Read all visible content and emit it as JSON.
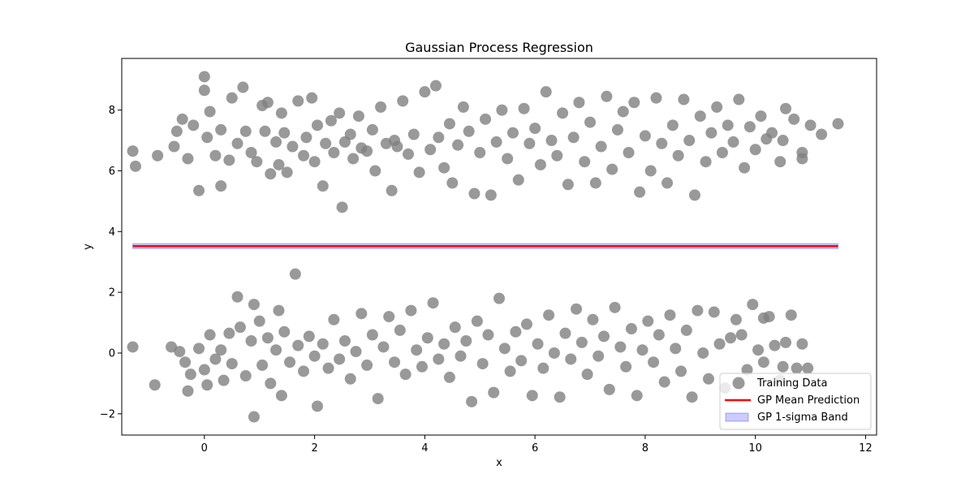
{
  "chart_data": {
    "type": "scatter",
    "title": "Gaussian Process Regression",
    "xlabel": "x",
    "ylabel": "y",
    "xlim": [
      -1.5,
      12.2
    ],
    "ylim": [
      -2.7,
      9.7
    ],
    "xticks": [
      0,
      2,
      4,
      6,
      8,
      10,
      12
    ],
    "yticks": [
      -2,
      0,
      2,
      4,
      6,
      8
    ],
    "grid": false,
    "legend_position": "lower-right",
    "series": [
      {
        "name": "Training Data",
        "kind": "scatter",
        "color": "#808080",
        "description": "Two horizontal clusters of noisy training points: one centred near y = 7 and one centred near y = 0, spanning x from about -1.3 to 11.5.",
        "points": [
          [
            -1.3,
            6.65
          ],
          [
            -1.25,
            6.15
          ],
          [
            -0.85,
            6.5
          ],
          [
            -0.55,
            6.8
          ],
          [
            -0.5,
            7.3
          ],
          [
            -0.4,
            7.7
          ],
          [
            -0.3,
            6.4
          ],
          [
            -0.2,
            7.5
          ],
          [
            -0.1,
            5.35
          ],
          [
            0.0,
            9.1
          ],
          [
            0.0,
            8.65
          ],
          [
            0.05,
            7.1
          ],
          [
            0.1,
            7.95
          ],
          [
            0.2,
            6.5
          ],
          [
            0.3,
            7.35
          ],
          [
            0.3,
            5.5
          ],
          [
            0.45,
            6.35
          ],
          [
            0.5,
            8.4
          ],
          [
            0.6,
            6.9
          ],
          [
            0.7,
            8.75
          ],
          [
            0.75,
            7.3
          ],
          [
            0.85,
            6.6
          ],
          [
            0.95,
            6.3
          ],
          [
            1.05,
            8.15
          ],
          [
            1.1,
            7.3
          ],
          [
            1.15,
            8.25
          ],
          [
            1.2,
            5.9
          ],
          [
            1.3,
            6.95
          ],
          [
            1.35,
            6.2
          ],
          [
            1.4,
            7.9
          ],
          [
            1.45,
            7.25
          ],
          [
            1.5,
            5.95
          ],
          [
            1.6,
            6.8
          ],
          [
            1.7,
            8.3
          ],
          [
            1.8,
            6.5
          ],
          [
            1.85,
            7.1
          ],
          [
            1.95,
            8.4
          ],
          [
            2.0,
            6.3
          ],
          [
            2.05,
            7.5
          ],
          [
            2.15,
            5.5
          ],
          [
            2.2,
            6.9
          ],
          [
            2.3,
            7.65
          ],
          [
            2.35,
            6.6
          ],
          [
            2.45,
            7.9
          ],
          [
            2.5,
            4.8
          ],
          [
            2.55,
            6.95
          ],
          [
            2.65,
            7.2
          ],
          [
            2.7,
            6.4
          ],
          [
            2.8,
            7.8
          ],
          [
            2.85,
            6.75
          ],
          [
            2.95,
            6.65
          ],
          [
            3.05,
            7.35
          ],
          [
            3.1,
            6.0
          ],
          [
            3.2,
            8.1
          ],
          [
            3.3,
            6.9
          ],
          [
            3.4,
            5.35
          ],
          [
            3.45,
            7.0
          ],
          [
            3.5,
            6.8
          ],
          [
            3.6,
            8.3
          ],
          [
            3.7,
            6.55
          ],
          [
            3.8,
            7.2
          ],
          [
            3.9,
            5.95
          ],
          [
            4.0,
            8.6
          ],
          [
            4.1,
            6.7
          ],
          [
            4.2,
            8.8
          ],
          [
            4.25,
            7.1
          ],
          [
            4.35,
            6.1
          ],
          [
            4.45,
            7.55
          ],
          [
            4.5,
            5.6
          ],
          [
            4.6,
            6.85
          ],
          [
            4.7,
            8.1
          ],
          [
            4.8,
            7.3
          ],
          [
            4.9,
            5.25
          ],
          [
            5.0,
            6.6
          ],
          [
            5.1,
            7.7
          ],
          [
            5.2,
            5.2
          ],
          [
            5.3,
            6.95
          ],
          [
            5.4,
            8.0
          ],
          [
            5.5,
            6.4
          ],
          [
            5.6,
            7.25
          ],
          [
            5.7,
            5.7
          ],
          [
            5.8,
            8.05
          ],
          [
            5.9,
            6.9
          ],
          [
            6.0,
            7.4
          ],
          [
            6.1,
            6.2
          ],
          [
            6.2,
            8.6
          ],
          [
            6.3,
            7.0
          ],
          [
            6.4,
            6.5
          ],
          [
            6.5,
            7.9
          ],
          [
            6.6,
            5.55
          ],
          [
            6.7,
            7.1
          ],
          [
            6.8,
            8.25
          ],
          [
            6.9,
            6.3
          ],
          [
            7.0,
            7.6
          ],
          [
            7.1,
            5.6
          ],
          [
            7.2,
            6.8
          ],
          [
            7.3,
            8.45
          ],
          [
            7.4,
            6.05
          ],
          [
            7.5,
            7.35
          ],
          [
            7.6,
            7.95
          ],
          [
            7.7,
            6.6
          ],
          [
            7.8,
            8.25
          ],
          [
            7.9,
            5.3
          ],
          [
            8.0,
            7.15
          ],
          [
            8.1,
            6.0
          ],
          [
            8.2,
            8.4
          ],
          [
            8.3,
            6.9
          ],
          [
            8.4,
            5.6
          ],
          [
            8.5,
            7.5
          ],
          [
            8.6,
            6.5
          ],
          [
            8.7,
            8.35
          ],
          [
            8.8,
            7.0
          ],
          [
            8.9,
            5.2
          ],
          [
            9.0,
            7.8
          ],
          [
            9.1,
            6.3
          ],
          [
            9.2,
            7.25
          ],
          [
            9.3,
            8.1
          ],
          [
            9.4,
            6.6
          ],
          [
            9.5,
            7.5
          ],
          [
            9.6,
            6.95
          ],
          [
            9.7,
            8.35
          ],
          [
            9.8,
            6.1
          ],
          [
            9.9,
            7.45
          ],
          [
            10.0,
            6.7
          ],
          [
            10.1,
            7.8
          ],
          [
            10.2,
            7.05
          ],
          [
            10.3,
            7.25
          ],
          [
            10.45,
            6.3
          ],
          [
            10.5,
            7.0
          ],
          [
            10.55,
            8.05
          ],
          [
            10.7,
            7.7
          ],
          [
            10.85,
            6.6
          ],
          [
            10.85,
            6.4
          ],
          [
            11.0,
            7.5
          ],
          [
            11.2,
            7.2
          ],
          [
            11.5,
            7.55
          ],
          [
            -1.3,
            0.2
          ],
          [
            -0.9,
            -1.05
          ],
          [
            -0.6,
            0.2
          ],
          [
            -0.45,
            0.05
          ],
          [
            -0.35,
            -0.3
          ],
          [
            -0.3,
            -1.25
          ],
          [
            -0.25,
            -0.7
          ],
          [
            -0.1,
            0.15
          ],
          [
            0.0,
            -0.55
          ],
          [
            0.05,
            -1.05
          ],
          [
            0.1,
            0.6
          ],
          [
            0.2,
            -0.2
          ],
          [
            0.3,
            0.1
          ],
          [
            0.35,
            -0.9
          ],
          [
            0.45,
            0.65
          ],
          [
            0.5,
            -0.35
          ],
          [
            0.6,
            1.85
          ],
          [
            0.65,
            0.85
          ],
          [
            0.75,
            -0.75
          ],
          [
            0.85,
            0.4
          ],
          [
            0.9,
            1.6
          ],
          [
            0.9,
            -2.1
          ],
          [
            1.0,
            1.05
          ],
          [
            1.05,
            -0.4
          ],
          [
            1.15,
            0.5
          ],
          [
            1.2,
            -1.0
          ],
          [
            1.3,
            0.1
          ],
          [
            1.35,
            1.4
          ],
          [
            1.4,
            -1.4
          ],
          [
            1.45,
            0.7
          ],
          [
            1.55,
            -0.3
          ],
          [
            1.65,
            2.6
          ],
          [
            1.7,
            0.25
          ],
          [
            1.8,
            -0.6
          ],
          [
            1.9,
            0.55
          ],
          [
            2.0,
            -0.1
          ],
          [
            2.05,
            -1.75
          ],
          [
            2.15,
            0.3
          ],
          [
            2.25,
            -0.5
          ],
          [
            2.35,
            1.1
          ],
          [
            2.45,
            -0.2
          ],
          [
            2.55,
            0.4
          ],
          [
            2.65,
            -0.85
          ],
          [
            2.75,
            0.05
          ],
          [
            2.85,
            1.3
          ],
          [
            2.95,
            -0.4
          ],
          [
            3.05,
            0.6
          ],
          [
            3.15,
            -1.5
          ],
          [
            3.25,
            0.2
          ],
          [
            3.35,
            1.2
          ],
          [
            3.45,
            -0.3
          ],
          [
            3.55,
            0.75
          ],
          [
            3.65,
            -0.7
          ],
          [
            3.75,
            1.4
          ],
          [
            3.85,
            0.1
          ],
          [
            3.95,
            -0.45
          ],
          [
            4.05,
            0.5
          ],
          [
            4.15,
            1.65
          ],
          [
            4.25,
            -0.2
          ],
          [
            4.35,
            0.3
          ],
          [
            4.45,
            -0.8
          ],
          [
            4.55,
            0.85
          ],
          [
            4.65,
            -0.1
          ],
          [
            4.75,
            0.4
          ],
          [
            4.85,
            -1.6
          ],
          [
            4.95,
            1.05
          ],
          [
            5.05,
            -0.35
          ],
          [
            5.15,
            0.6
          ],
          [
            5.25,
            -1.3
          ],
          [
            5.35,
            1.8
          ],
          [
            5.45,
            0.15
          ],
          [
            5.55,
            -0.6
          ],
          [
            5.65,
            0.7
          ],
          [
            5.75,
            -0.25
          ],
          [
            5.85,
            0.95
          ],
          [
            5.95,
            -1.4
          ],
          [
            6.05,
            0.3
          ],
          [
            6.15,
            -0.5
          ],
          [
            6.25,
            1.25
          ],
          [
            6.35,
            0.0
          ],
          [
            6.45,
            -1.45
          ],
          [
            6.55,
            0.65
          ],
          [
            6.65,
            -0.2
          ],
          [
            6.75,
            1.45
          ],
          [
            6.85,
            0.35
          ],
          [
            6.95,
            -0.7
          ],
          [
            7.05,
            1.1
          ],
          [
            7.15,
            -0.1
          ],
          [
            7.25,
            0.55
          ],
          [
            7.35,
            -1.2
          ],
          [
            7.45,
            1.5
          ],
          [
            7.55,
            0.2
          ],
          [
            7.65,
            -0.45
          ],
          [
            7.75,
            0.8
          ],
          [
            7.85,
            -1.4
          ],
          [
            7.95,
            0.1
          ],
          [
            8.05,
            1.05
          ],
          [
            8.15,
            -0.3
          ],
          [
            8.25,
            0.6
          ],
          [
            8.35,
            -0.95
          ],
          [
            8.45,
            1.25
          ],
          [
            8.55,
            0.15
          ],
          [
            8.65,
            -0.6
          ],
          [
            8.75,
            0.75
          ],
          [
            8.85,
            -1.45
          ],
          [
            8.95,
            1.4
          ],
          [
            9.05,
            0.0
          ],
          [
            9.15,
            -0.85
          ],
          [
            9.25,
            1.35
          ],
          [
            9.35,
            0.3
          ],
          [
            9.45,
            -1.15
          ],
          [
            9.55,
            0.5
          ],
          [
            9.65,
            1.1
          ],
          [
            9.75,
            0.6
          ],
          [
            9.85,
            -0.55
          ],
          [
            9.95,
            1.6
          ],
          [
            10.05,
            0.1
          ],
          [
            10.15,
            -0.3
          ],
          [
            10.25,
            1.2
          ],
          [
            10.35,
            0.25
          ],
          [
            10.45,
            -0.9
          ],
          [
            10.55,
            0.35
          ],
          [
            10.65,
            1.25
          ],
          [
            10.75,
            -0.5
          ],
          [
            10.85,
            0.3
          ],
          [
            10.95,
            -0.5
          ],
          [
            10.5,
            -0.45
          ],
          [
            10.15,
            1.15
          ]
        ]
      },
      {
        "name": "GP Mean Prediction",
        "kind": "line",
        "color": "#ff0000",
        "x": [
          -1.3,
          11.5
        ],
        "y": [
          3.52,
          3.52
        ]
      },
      {
        "name": "GP 1-sigma Band",
        "kind": "band",
        "color": "#0000ff",
        "x": [
          -1.3,
          11.5
        ],
        "lower": [
          3.44,
          3.44
        ],
        "upper": [
          3.6,
          3.6
        ]
      }
    ]
  }
}
